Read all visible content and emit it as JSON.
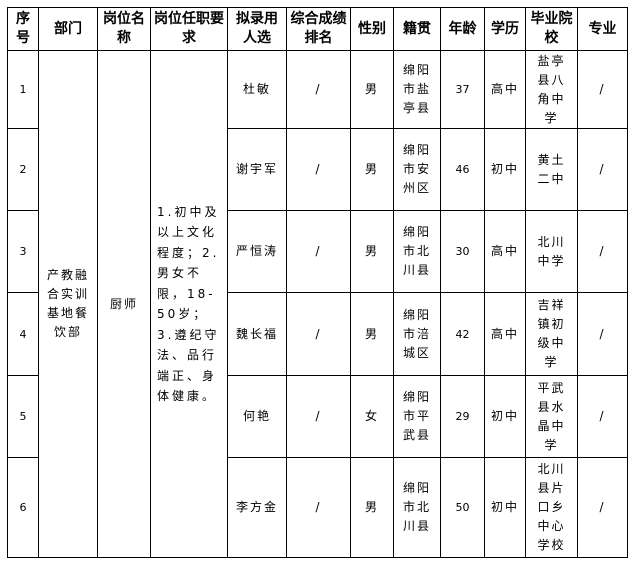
{
  "headers": [
    "序号",
    "部门",
    "岗位名称",
    "岗位任职要求",
    "拟录用人选",
    "综合成绩排名",
    "性别",
    "籍贯",
    "年龄",
    "学历",
    "毕业院校",
    "专业"
  ],
  "department": "产教融合实训基地餐饮部",
  "position": "厨师",
  "requirements": "1.初中及以上文化程度；2.男女不限，18-50岁；3.遵纪守法、品行端正、身体健康。",
  "rows": [
    {
      "no": "1",
      "name": "杜敏",
      "rank": "/",
      "gender": "男",
      "origin": "绵阳市盐亭县",
      "age": "37",
      "edu": "高中",
      "school": "盐亭县八角中学",
      "major": "/"
    },
    {
      "no": "2",
      "name": "谢宇军",
      "rank": "/",
      "gender": "男",
      "origin": "绵阳市安州区",
      "age": "46",
      "edu": "初中",
      "school": "黄土二中",
      "major": "/"
    },
    {
      "no": "3",
      "name": "严恒涛",
      "rank": "/",
      "gender": "男",
      "origin": "绵阳市北川县",
      "age": "30",
      "edu": "高中",
      "school": "北川中学",
      "major": "/"
    },
    {
      "no": "4",
      "name": "魏长福",
      "rank": "/",
      "gender": "男",
      "origin": "绵阳市涪城区",
      "age": "42",
      "edu": "高中",
      "school": "吉祥镇初级中学",
      "major": "/"
    },
    {
      "no": "5",
      "name": "何艳",
      "rank": "/",
      "gender": "女",
      "origin": "绵阳市平武县",
      "age": "29",
      "edu": "初中",
      "school": "平武县水晶中学",
      "major": "/"
    },
    {
      "no": "6",
      "name": "李方金",
      "rank": "/",
      "gender": "男",
      "origin": "绵阳市北川县",
      "age": "50",
      "edu": "初中",
      "school": "北川县片口乡中心学校",
      "major": "/"
    }
  ]
}
